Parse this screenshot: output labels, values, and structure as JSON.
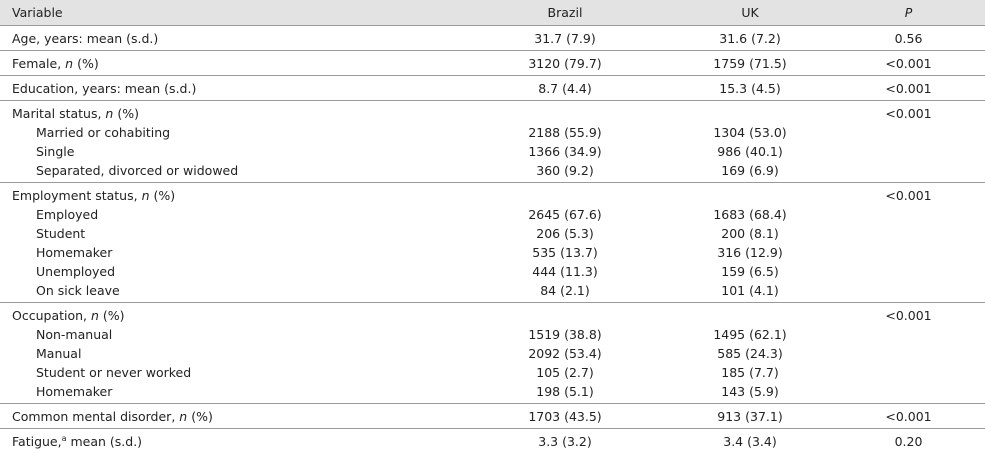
{
  "header": [
    "Variable",
    "Brazil",
    "UK",
    [
      {
        "text": "P",
        "style": "italic"
      }
    ]
  ],
  "groups": [
    {
      "rows": [
        {
          "label": "Age, years: mean (s.d.)",
          "brazil": "31.7 (7.9)",
          "uk": "31.6 (7.2)",
          "p": "0.56"
        }
      ]
    },
    {
      "rows": [
        {
          "label": [
            "Female, ",
            {
              "text": "n",
              "style": "italic"
            },
            " (%)"
          ],
          "brazil": "3120 (79.7)",
          "uk": "1759 (71.5)",
          "p": "<0.001"
        }
      ]
    },
    {
      "rows": [
        {
          "label": "Education, years: mean (s.d.)",
          "brazil": "8.7 (4.4)",
          "uk": "15.3 (4.5)",
          "p": "<0.001"
        }
      ]
    },
    {
      "rows": [
        {
          "label": [
            "Marital status, ",
            {
              "text": "n",
              "style": "italic"
            },
            " (%)"
          ],
          "p": "<0.001"
        },
        {
          "label": "Married or cohabiting",
          "brazil": "2188 (55.9)",
          "uk": "1304 (53.0)"
        },
        {
          "label": "Single",
          "brazil": "1366 (34.9)",
          "uk": "986 (40.1)"
        },
        {
          "label": "Separated, divorced or widowed",
          "brazil": "360 (9.2)",
          "uk": "169 (6.9)"
        }
      ]
    },
    {
      "rows": [
        {
          "label": [
            "Employment status, ",
            {
              "text": "n",
              "style": "italic"
            },
            " (%)"
          ],
          "p": "<0.001"
        },
        {
          "label": "Employed",
          "brazil": "2645 (67.6)",
          "uk": "1683 (68.4)"
        },
        {
          "label": "Student",
          "brazil": "206 (5.3)",
          "uk": "200 (8.1)"
        },
        {
          "label": "Homemaker",
          "brazil": "535 (13.7)",
          "uk": "316 (12.9)"
        },
        {
          "label": "Unemployed",
          "brazil": "444 (11.3)",
          "uk": "159 (6.5)"
        },
        {
          "label": "On sick leave",
          "brazil": "84 (2.1)",
          "uk": "101 (4.1)"
        }
      ]
    },
    {
      "rows": [
        {
          "label": [
            "Occupation, ",
            {
              "text": "n",
              "style": "italic"
            },
            " (%)"
          ],
          "p": "<0.001"
        },
        {
          "label": "Non-manual",
          "brazil": "1519 (38.8)",
          "uk": "1495 (62.1)"
        },
        {
          "label": "Manual",
          "brazil": "2092 (53.4)",
          "uk": "585 (24.3)"
        },
        {
          "label": "Student or never worked",
          "brazil": "105 (2.7)",
          "uk": "185 (7.7)"
        },
        {
          "label": "Homemaker",
          "brazil": "198 (5.1)",
          "uk": "143 (5.9)"
        }
      ]
    },
    {
      "rows": [
        {
          "label": [
            "Common mental disorder, ",
            {
              "text": "n",
              "style": "italic"
            },
            " (%)"
          ],
          "brazil": "1703 (43.5)",
          "uk": "913 (37.1)",
          "p": "<0.001"
        }
      ]
    },
    {
      "rows": [
        {
          "label": [
            "Fatigue,",
            {
              "text": "a",
              "style": "sup"
            },
            " mean (s.d.)"
          ],
          "brazil": "3.3 (3.2)",
          "uk": "3.4 (3.4)",
          "p": "0.20"
        }
      ]
    }
  ]
}
